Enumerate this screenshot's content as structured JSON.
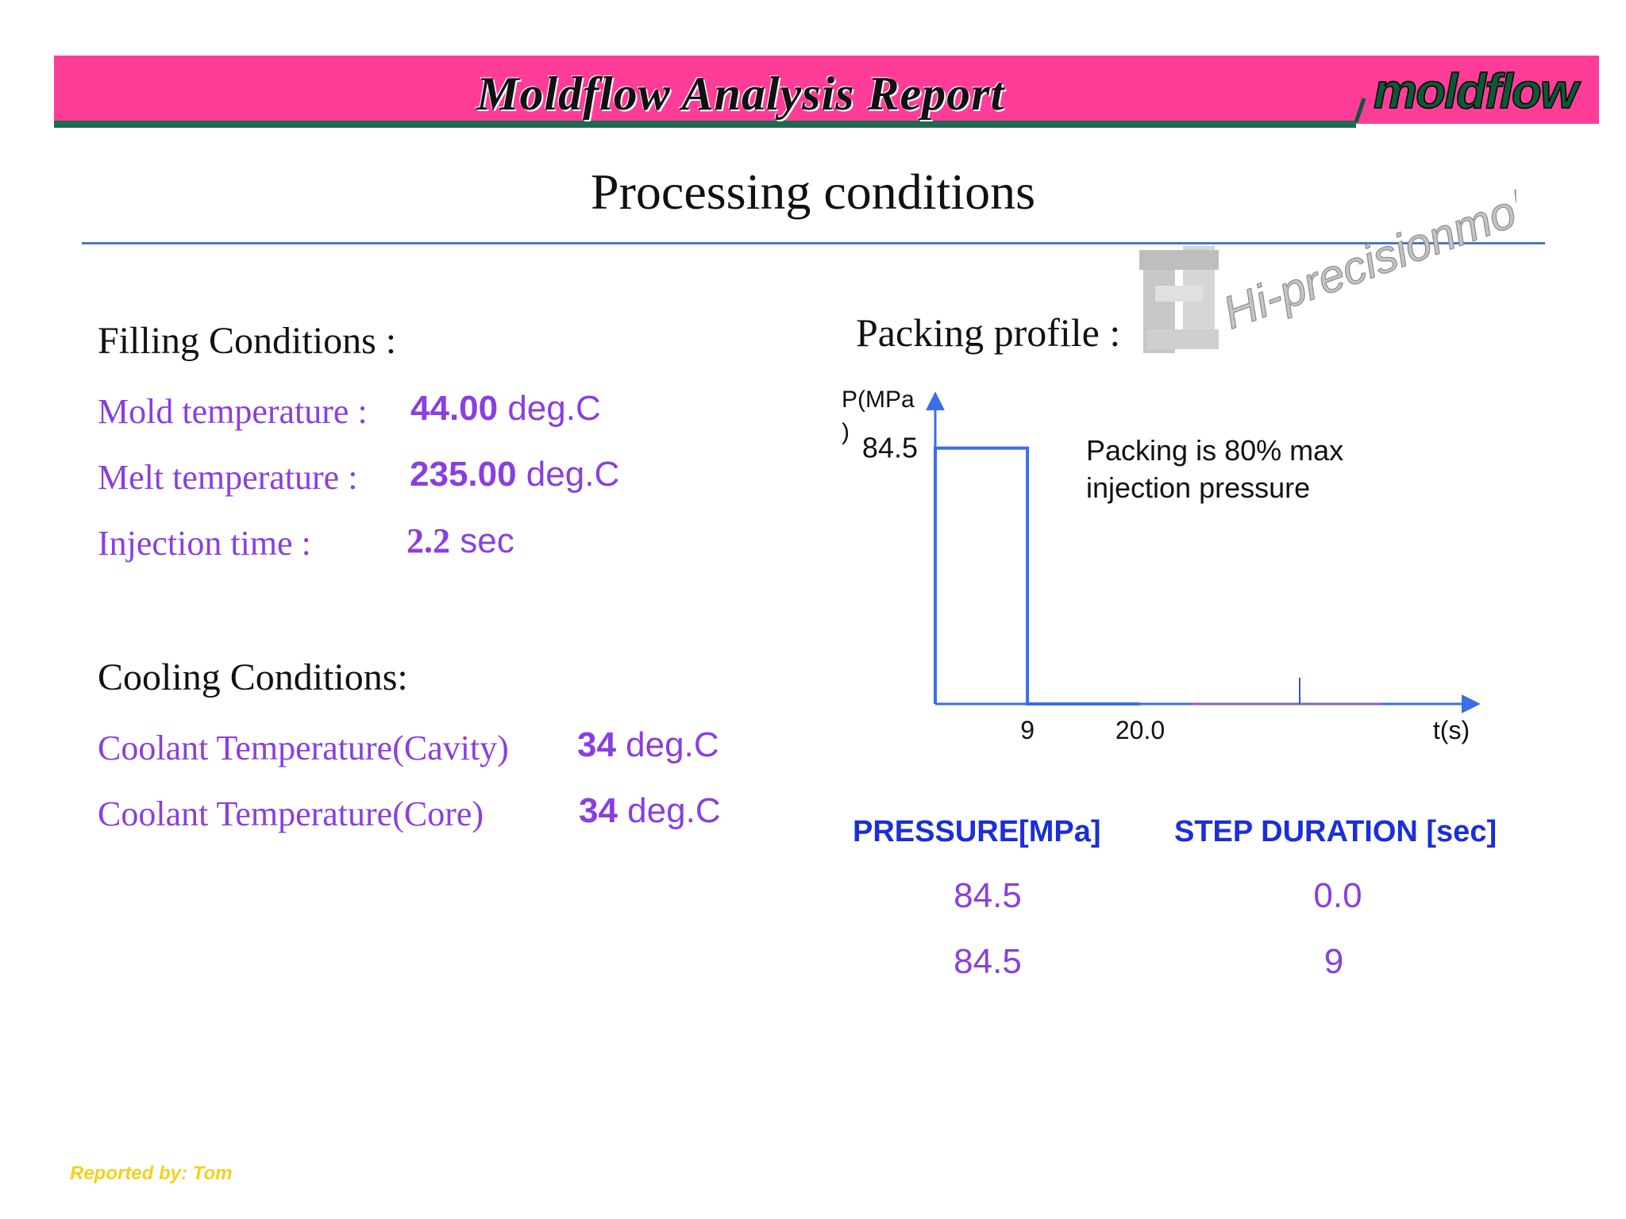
{
  "header": {
    "title": "Moldflow Analysis Report",
    "logo_text": "moldflow",
    "banner_color": "#ff3d98",
    "accent_color": "#1f6a52"
  },
  "page_title": "Processing conditions",
  "watermark": {
    "text": "Hi-precisionmold.com"
  },
  "filling": {
    "heading": "Filling Conditions :",
    "rows": [
      {
        "label": "Mold temperature :",
        "value": "44.00",
        "unit": " deg.C"
      },
      {
        "label": "Melt temperature :",
        "value": "235.00",
        "unit": " deg.C"
      },
      {
        "label": "Injection time :",
        "value": "2.2",
        "unit": " sec"
      }
    ]
  },
  "cooling": {
    "heading": "Cooling Conditions:",
    "rows": [
      {
        "label": "Coolant Temperature(Cavity)",
        "value": "34",
        "unit": " deg.C"
      },
      {
        "label": "Coolant Temperature(Core)",
        "value": "34",
        "unit": " deg.C"
      }
    ]
  },
  "packing": {
    "heading": "Packing profile :",
    "note_line1": "Packing is 80% max",
    "note_line2": "injection pressure",
    "table": {
      "headers": [
        "PRESSURE[MPa]",
        "STEP DURATION [sec]"
      ],
      "rows": [
        [
          "84.5",
          "0.0"
        ],
        [
          "84.5",
          "9"
        ]
      ]
    }
  },
  "chart_data": {
    "type": "line",
    "title": "",
    "ylabel_line1": "P(MPa",
    "ylabel_line2": ")",
    "xlabel": "t(s)",
    "x_ticks": [
      "9",
      "20.0"
    ],
    "y_ticks": [
      "84.5"
    ],
    "series": [
      {
        "x": [
          0,
          0,
          9,
          9,
          20
        ],
        "y": [
          0,
          84.5,
          84.5,
          0,
          0
        ]
      }
    ],
    "xlim": [
      0,
      45
    ],
    "ylim": [
      0,
      130
    ],
    "line_color": "#3a6ee8"
  },
  "footer": {
    "text": "Reported by: Tom"
  }
}
